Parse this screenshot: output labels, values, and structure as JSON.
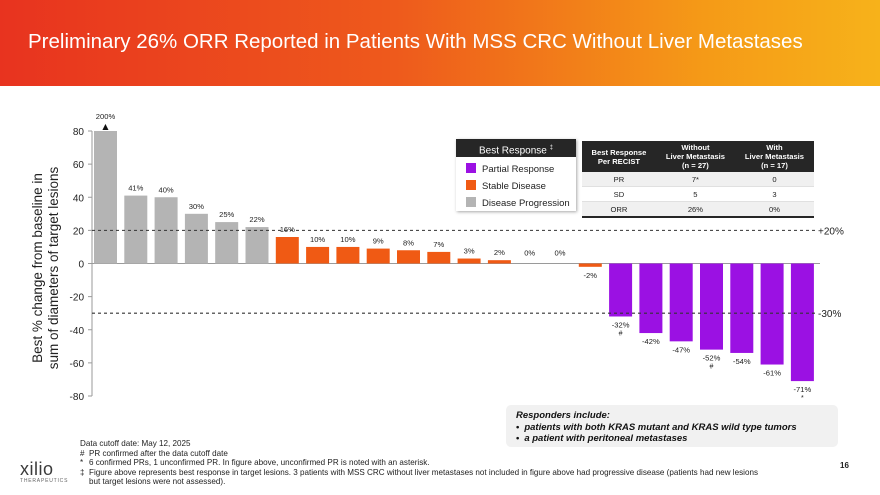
{
  "title": "Preliminary 26% ORR Reported in Patients With MSS CRC Without Liver Metastases",
  "chart_data": {
    "type": "bar",
    "ylabel_lines": [
      "Best % change from baseline in",
      "sum of diameters of target lesions"
    ],
    "ylim": [
      -80,
      80
    ],
    "yticks": [
      80,
      60,
      40,
      20,
      0,
      -20,
      -40,
      -60,
      -80
    ],
    "bars": [
      {
        "value": 80,
        "actual": 200,
        "label": "200%",
        "category": "Disease Progression",
        "marker": "▲"
      },
      {
        "value": 41,
        "label": "41%",
        "category": "Disease Progression"
      },
      {
        "value": 40,
        "label": "40%",
        "category": "Disease Progression"
      },
      {
        "value": 30,
        "label": "30%",
        "category": "Disease Progression"
      },
      {
        "value": 25,
        "label": "25%",
        "category": "Disease Progression"
      },
      {
        "value": 22,
        "label": "22%",
        "category": "Disease Progression"
      },
      {
        "value": 16,
        "label": "16%",
        "category": "Stable Disease"
      },
      {
        "value": 10,
        "label": "10%",
        "category": "Stable Disease"
      },
      {
        "value": 10,
        "label": "10%",
        "category": "Stable Disease"
      },
      {
        "value": 9,
        "label": "9%",
        "category": "Stable Disease"
      },
      {
        "value": 8,
        "label": "8%",
        "category": "Stable Disease"
      },
      {
        "value": 7,
        "label": "7%",
        "category": "Stable Disease"
      },
      {
        "value": 3,
        "label": "3%",
        "category": "Stable Disease"
      },
      {
        "value": 2,
        "label": "2%",
        "category": "Stable Disease"
      },
      {
        "value": 0,
        "label": "0%",
        "category": "Stable Disease"
      },
      {
        "value": 0,
        "label": "0%",
        "category": "Stable Disease"
      },
      {
        "value": -2,
        "label": "-2%",
        "category": "Stable Disease"
      },
      {
        "value": -32,
        "label": "-32%",
        "category": "Partial Response",
        "note": "#"
      },
      {
        "value": -42,
        "label": "-42%",
        "category": "Partial Response"
      },
      {
        "value": -47,
        "label": "-47%",
        "category": "Partial Response"
      },
      {
        "value": -52,
        "label": "-52%",
        "category": "Partial Response",
        "note": "#"
      },
      {
        "value": -54,
        "label": "-54%",
        "category": "Partial Response"
      },
      {
        "value": -61,
        "label": "-61%",
        "category": "Partial Response"
      },
      {
        "value": -71,
        "label": "-71%",
        "category": "Partial Response",
        "note": "*"
      }
    ],
    "reference_lines": [
      {
        "value": 20,
        "label": "+20%"
      },
      {
        "value": -30,
        "label": "-30%"
      }
    ],
    "colors": {
      "Partial Response": "#9b11e3",
      "Stable Disease": "#f05a14",
      "Disease Progression": "#b4b4b4"
    }
  },
  "legend": {
    "title": "Best Response",
    "title_mark": "‡",
    "items": [
      {
        "label": "Partial Response",
        "color": "#9b11e3"
      },
      {
        "label": "Stable Disease",
        "color": "#f05a14"
      },
      {
        "label": "Disease Progression",
        "color": "#b4b4b4"
      }
    ]
  },
  "response_table": {
    "headers": [
      [
        "Best Response",
        "Per RECIST"
      ],
      [
        "Without",
        "Liver Metastasis",
        "(n = 27)"
      ],
      [
        "With",
        "Liver Metastasis",
        "(n = 17)"
      ]
    ],
    "rows": [
      [
        "PR",
        "7*",
        "0"
      ],
      [
        "SD",
        "5",
        "3"
      ],
      [
        "ORR",
        "26%",
        "0%"
      ]
    ]
  },
  "responders": {
    "heading": "Responders include:",
    "items": [
      "patients with both KRAS mutant and KRAS wild type tumors",
      "a patient with peritoneal metastases"
    ]
  },
  "footnotes": {
    "cutoff": "Data cutoff date: May 12, 2025",
    "notes": [
      {
        "symbol": "#",
        "text": "PR confirmed after the data cutoff date"
      },
      {
        "symbol": "*",
        "text": "6 confirmed PRs, 1 unconfirmed PR. In figure above, unconfirmed PR is noted with an asterisk."
      },
      {
        "symbol": "‡",
        "text": "Figure above represents best response in target lesions. 3 patients with MSS CRC without liver metastases not included in figure above had progressive disease (patients had new lesions but target lesions were not assessed)."
      }
    ]
  },
  "logo": {
    "name": "xilio",
    "sub": "THERAPEUTICS"
  },
  "page_number": "16"
}
